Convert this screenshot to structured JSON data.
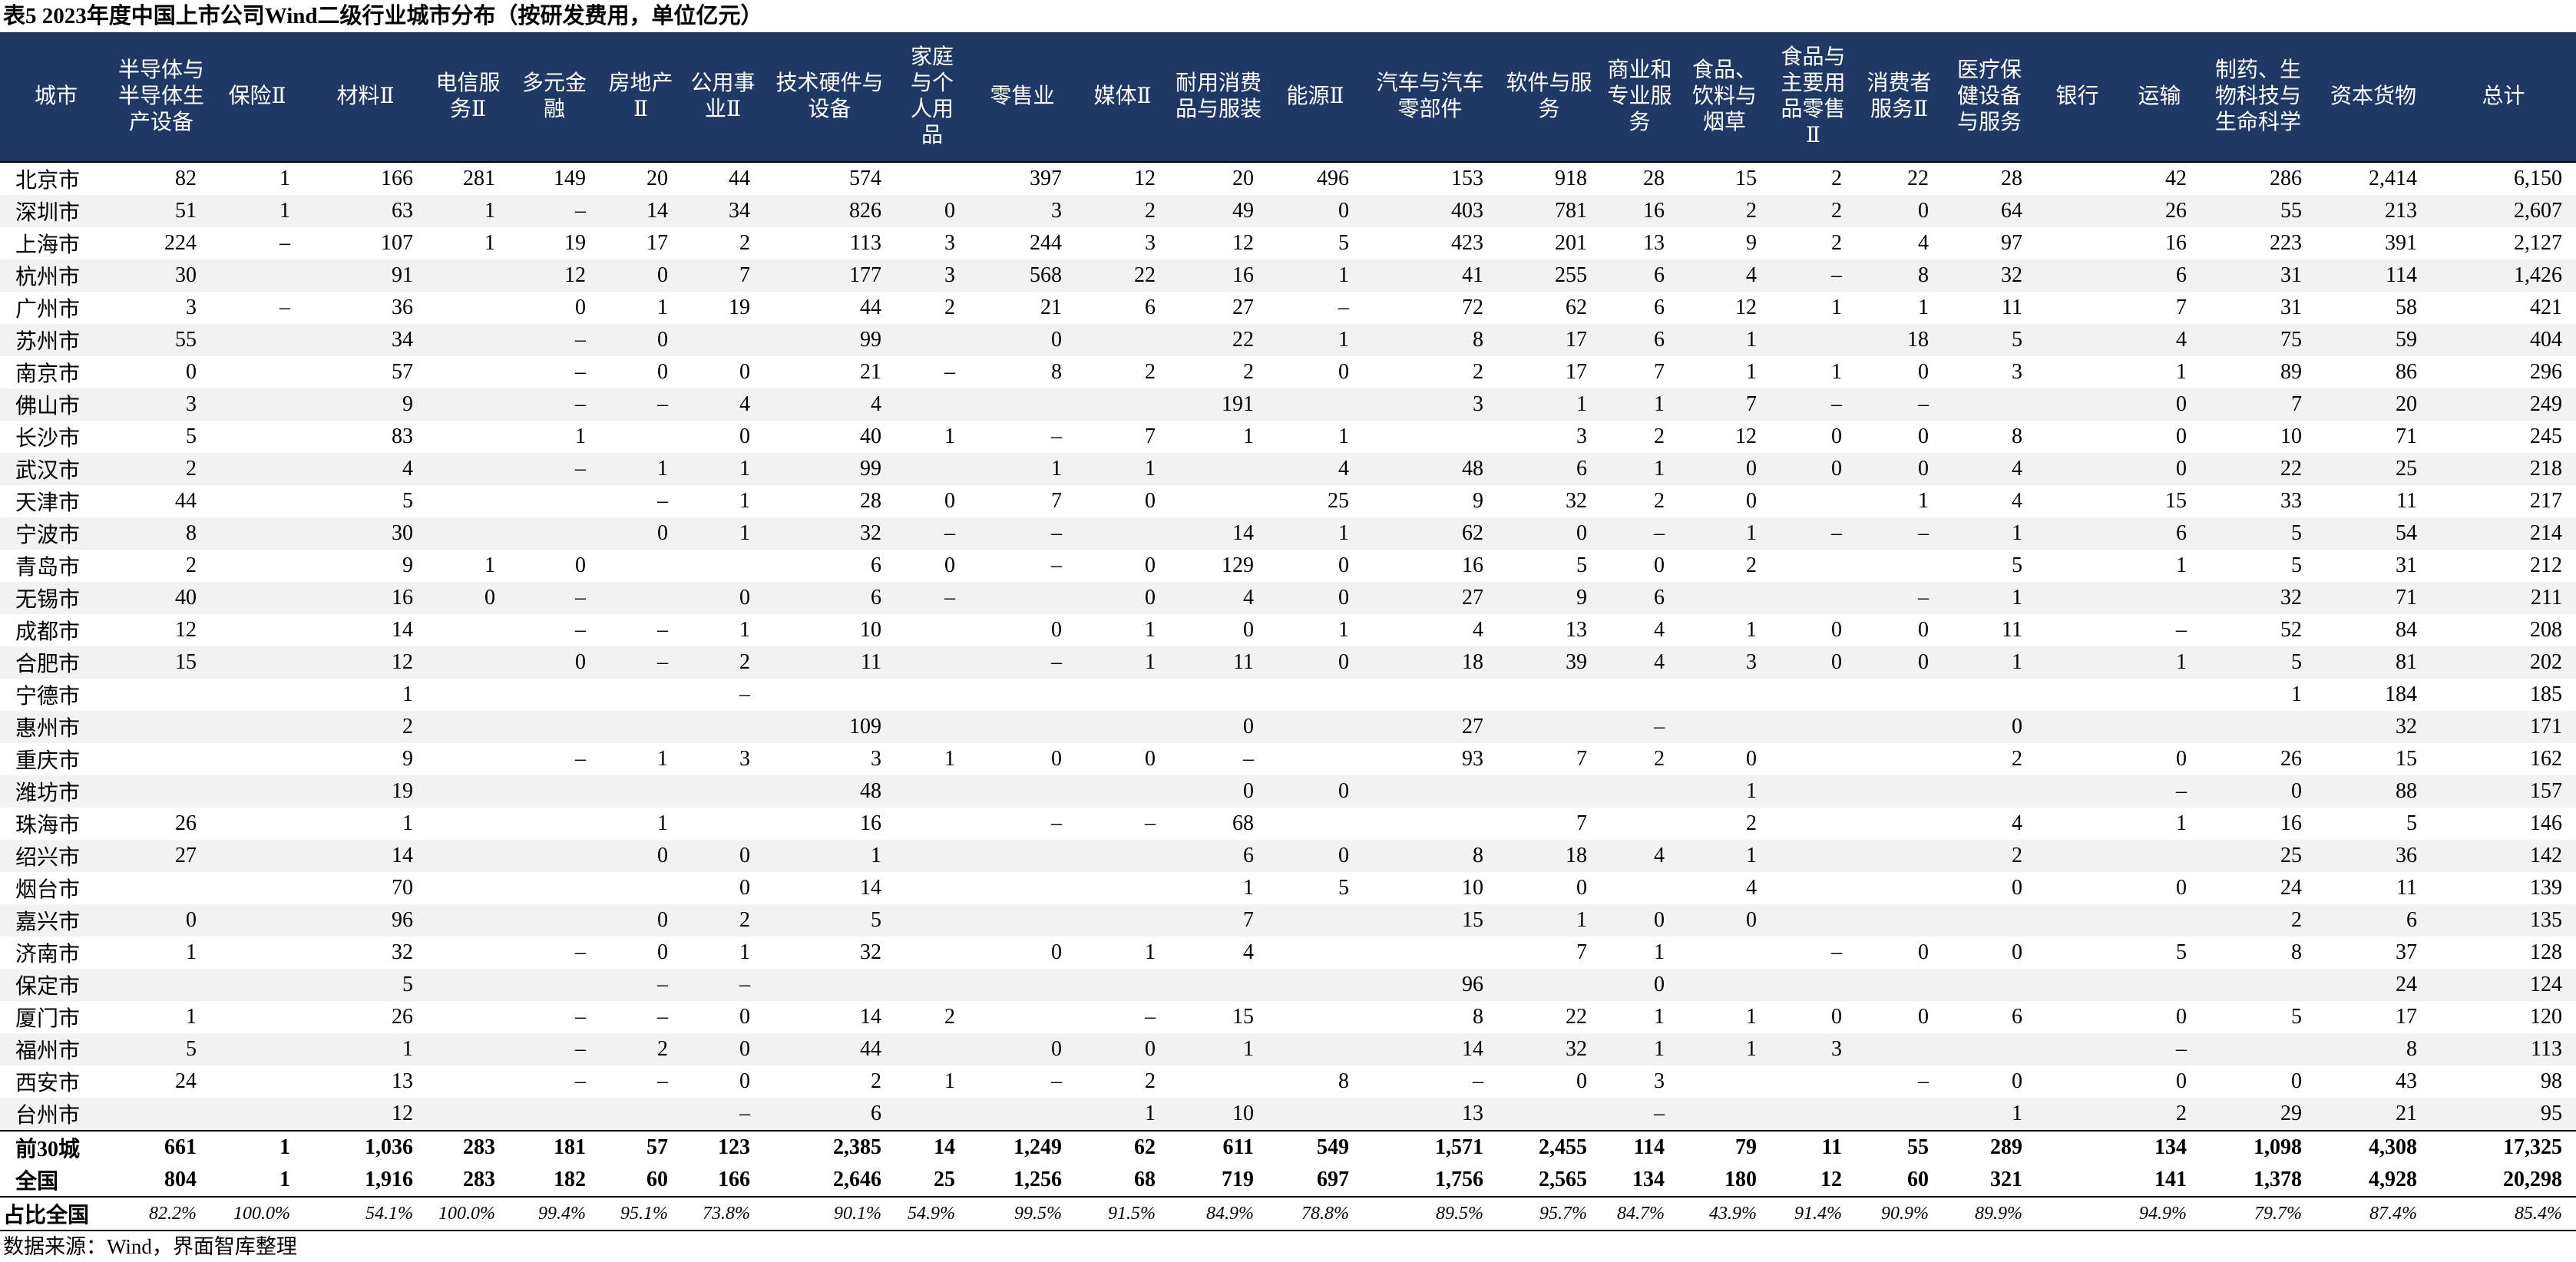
{
  "title": "表5 2023年度中国上市公司Wind二级行业城市分布（按研发费用，单位亿元）",
  "table": {
    "header": [
      "城市",
      "半导体与半导体生产设备",
      "保险Ⅱ",
      "材料Ⅱ",
      "电信服务Ⅱ",
      "多元金融",
      "房地产Ⅱ",
      "公用事业Ⅱ",
      "技术硬件与设备",
      "家庭与个人用品",
      "零售业",
      "媒体Ⅱ",
      "耐用消费品与服装",
      "能源Ⅱ",
      "汽车与汽车零部件",
      "软件与服务",
      "商业和专业服务",
      "食品、饮料与烟草",
      "食品与主要用品零售Ⅱ",
      "消费者服务Ⅱ",
      "医疗保健设备与服务",
      "银行",
      "运输",
      "制药、生物科技与生命科学",
      "资本货物",
      "总计"
    ],
    "rows": [
      [
        "北京市",
        "82",
        "1",
        "166",
        "281",
        "149",
        "20",
        "44",
        "574",
        null,
        "397",
        "12",
        "20",
        "496",
        "153",
        "918",
        "28",
        "15",
        "2",
        "22",
        "28",
        null,
        "42",
        "286",
        "2,414",
        "6,150"
      ],
      [
        "深圳市",
        "51",
        "1",
        "63",
        "1",
        "–",
        "14",
        "34",
        "826",
        "0",
        "3",
        "2",
        "49",
        "0",
        "403",
        "781",
        "16",
        "2",
        "2",
        "0",
        "64",
        null,
        "26",
        "55",
        "213",
        "2,607"
      ],
      [
        "上海市",
        "224",
        "–",
        "107",
        "1",
        "19",
        "17",
        "2",
        "113",
        "3",
        "244",
        "3",
        "12",
        "5",
        "423",
        "201",
        "13",
        "9",
        "2",
        "4",
        "97",
        null,
        "16",
        "223",
        "391",
        "2,127"
      ],
      [
        "杭州市",
        "30",
        null,
        "91",
        null,
        "12",
        "0",
        "7",
        "177",
        "3",
        "568",
        "22",
        "16",
        "1",
        "41",
        "255",
        "6",
        "4",
        "–",
        "8",
        "32",
        null,
        "6",
        "31",
        "114",
        "1,426"
      ],
      [
        "广州市",
        "3",
        "–",
        "36",
        null,
        "0",
        "1",
        "19",
        "44",
        "2",
        "21",
        "6",
        "27",
        "–",
        "72",
        "62",
        "6",
        "12",
        "1",
        "1",
        "11",
        null,
        "7",
        "31",
        "58",
        "421"
      ],
      [
        "苏州市",
        "55",
        null,
        "34",
        null,
        "–",
        "0",
        null,
        "99",
        null,
        "0",
        null,
        "22",
        "1",
        "8",
        "17",
        "6",
        "1",
        null,
        "18",
        "5",
        null,
        "4",
        "75",
        "59",
        "404"
      ],
      [
        "南京市",
        "0",
        null,
        "57",
        null,
        "–",
        "0",
        "0",
        "21",
        "–",
        "8",
        "2",
        "2",
        "0",
        "2",
        "17",
        "7",
        "1",
        "1",
        "0",
        "3",
        null,
        "1",
        "89",
        "86",
        "296"
      ],
      [
        "佛山市",
        "3",
        null,
        "9",
        null,
        "–",
        "–",
        "4",
        "4",
        null,
        null,
        null,
        "191",
        null,
        "3",
        "1",
        "1",
        "7",
        "–",
        "–",
        null,
        null,
        "0",
        "7",
        "20",
        "249"
      ],
      [
        "长沙市",
        "5",
        null,
        "83",
        null,
        "1",
        null,
        "0",
        "40",
        "1",
        "–",
        "7",
        "1",
        "1",
        null,
        "3",
        "2",
        "12",
        "0",
        "0",
        "8",
        null,
        "0",
        "10",
        "71",
        "245"
      ],
      [
        "武汉市",
        "2",
        null,
        "4",
        null,
        "–",
        "1",
        "1",
        "99",
        null,
        "1",
        "1",
        null,
        "4",
        "48",
        "6",
        "1",
        "0",
        "0",
        "0",
        "4",
        null,
        "0",
        "22",
        "25",
        "218"
      ],
      [
        "天津市",
        "44",
        null,
        "5",
        null,
        null,
        "–",
        "1",
        "28",
        "0",
        "7",
        "0",
        null,
        "25",
        "9",
        "32",
        "2",
        "0",
        null,
        "1",
        "4",
        null,
        "15",
        "33",
        "11",
        "217"
      ],
      [
        "宁波市",
        "8",
        null,
        "30",
        null,
        null,
        "0",
        "1",
        "32",
        "–",
        "–",
        null,
        "14",
        "1",
        "62",
        "0",
        "–",
        "1",
        "–",
        "–",
        "1",
        null,
        "6",
        "5",
        "54",
        "214"
      ],
      [
        "青岛市",
        "2",
        null,
        "9",
        "1",
        "0",
        null,
        null,
        "6",
        "0",
        "–",
        "0",
        "129",
        "0",
        "16",
        "5",
        "0",
        "2",
        null,
        null,
        "5",
        null,
        "1",
        "5",
        "31",
        "212"
      ],
      [
        "无锡市",
        "40",
        null,
        "16",
        "0",
        "–",
        null,
        "0",
        "6",
        "–",
        null,
        "0",
        "4",
        "0",
        "27",
        "9",
        "6",
        null,
        null,
        "–",
        "1",
        null,
        null,
        "32",
        "71",
        "211"
      ],
      [
        "成都市",
        "12",
        null,
        "14",
        null,
        "–",
        "–",
        "1",
        "10",
        null,
        "0",
        "1",
        "0",
        "1",
        "4",
        "13",
        "4",
        "1",
        "0",
        "0",
        "11",
        null,
        "–",
        "52",
        "84",
        "208"
      ],
      [
        "合肥市",
        "15",
        null,
        "12",
        null,
        "0",
        "–",
        "2",
        "11",
        null,
        "–",
        "1",
        "11",
        "0",
        "18",
        "39",
        "4",
        "3",
        "0",
        "0",
        "1",
        null,
        "1",
        "5",
        "81",
        "202"
      ],
      [
        "宁德市",
        null,
        null,
        "1",
        null,
        null,
        null,
        "–",
        null,
        null,
        null,
        null,
        null,
        null,
        null,
        null,
        null,
        null,
        null,
        null,
        null,
        null,
        null,
        "1",
        "184",
        "185"
      ],
      [
        "惠州市",
        null,
        null,
        "2",
        null,
        null,
        null,
        null,
        "109",
        null,
        null,
        null,
        "0",
        null,
        "27",
        null,
        "–",
        null,
        null,
        null,
        "0",
        null,
        null,
        null,
        "32",
        "171"
      ],
      [
        "重庆市",
        null,
        null,
        "9",
        null,
        "–",
        "1",
        "3",
        "3",
        "1",
        "0",
        "0",
        "–",
        null,
        "93",
        "7",
        "2",
        "0",
        null,
        null,
        "2",
        null,
        "0",
        "26",
        "15",
        "162"
      ],
      [
        "潍坊市",
        null,
        null,
        "19",
        null,
        null,
        null,
        null,
        "48",
        null,
        null,
        null,
        "0",
        "0",
        null,
        null,
        null,
        "1",
        null,
        null,
        null,
        null,
        "–",
        "0",
        "88",
        "157"
      ],
      [
        "珠海市",
        "26",
        null,
        "1",
        null,
        null,
        "1",
        null,
        "16",
        null,
        "–",
        "–",
        "68",
        null,
        null,
        "7",
        null,
        "2",
        null,
        null,
        "4",
        null,
        "1",
        "16",
        "5",
        "146"
      ],
      [
        "绍兴市",
        "27",
        null,
        "14",
        null,
        null,
        "0",
        "0",
        "1",
        null,
        null,
        null,
        "6",
        "0",
        "8",
        "18",
        "4",
        "1",
        null,
        null,
        "2",
        null,
        null,
        "25",
        "36",
        "142"
      ],
      [
        "烟台市",
        null,
        null,
        "70",
        null,
        null,
        null,
        "0",
        "14",
        null,
        null,
        null,
        "1",
        "5",
        "10",
        "0",
        null,
        "4",
        null,
        null,
        "0",
        null,
        "0",
        "24",
        "11",
        "139"
      ],
      [
        "嘉兴市",
        "0",
        null,
        "96",
        null,
        null,
        "0",
        "2",
        "5",
        null,
        null,
        null,
        "7",
        null,
        "15",
        "1",
        "0",
        "0",
        null,
        null,
        null,
        null,
        null,
        "2",
        "6",
        "135"
      ],
      [
        "济南市",
        "1",
        null,
        "32",
        null,
        "–",
        "0",
        "1",
        "32",
        null,
        "0",
        "1",
        "4",
        null,
        null,
        "7",
        "1",
        null,
        "–",
        "0",
        "0",
        null,
        "5",
        "8",
        "37",
        "128"
      ],
      [
        "保定市",
        null,
        null,
        "5",
        null,
        null,
        "–",
        "–",
        null,
        null,
        null,
        null,
        null,
        null,
        "96",
        null,
        "0",
        null,
        null,
        null,
        null,
        null,
        null,
        null,
        "24",
        "124"
      ],
      [
        "厦门市",
        "1",
        null,
        "26",
        null,
        "–",
        "–",
        "0",
        "14",
        "2",
        null,
        "–",
        "15",
        null,
        "8",
        "22",
        "1",
        "1",
        "0",
        "0",
        "6",
        null,
        "0",
        "5",
        "17",
        "120"
      ],
      [
        "福州市",
        "5",
        null,
        "1",
        null,
        "–",
        "2",
        "0",
        "44",
        null,
        "0",
        "0",
        "1",
        null,
        "14",
        "32",
        "1",
        "1",
        "3",
        null,
        null,
        null,
        "–",
        null,
        "8",
        "113"
      ],
      [
        "西安市",
        "24",
        null,
        "13",
        null,
        "–",
        "–",
        "0",
        "2",
        "1",
        "–",
        "2",
        null,
        "8",
        "–",
        "0",
        "3",
        null,
        null,
        "–",
        "0",
        null,
        "0",
        "0",
        "43",
        "98"
      ],
      [
        "台州市",
        null,
        null,
        "12",
        null,
        null,
        null,
        "–",
        "6",
        null,
        null,
        "1",
        "10",
        null,
        "13",
        null,
        "–",
        null,
        null,
        null,
        "1",
        null,
        "2",
        "29",
        "21",
        "95"
      ],
      [
        "前30城",
        "661",
        "1",
        "1,036",
        "283",
        "181",
        "57",
        "123",
        "2,385",
        "14",
        "1,249",
        "62",
        "611",
        "549",
        "1,571",
        "2,455",
        "114",
        "79",
        "11",
        "55",
        "289",
        null,
        "134",
        "1,098",
        "4,308",
        "17,325"
      ],
      [
        "全国",
        "804",
        "1",
        "1,916",
        "283",
        "182",
        "60",
        "166",
        "2,646",
        "25",
        "1,256",
        "68",
        "719",
        "697",
        "1,756",
        "2,565",
        "134",
        "180",
        "12",
        "60",
        "321",
        null,
        "141",
        "1,378",
        "4,928",
        "20,298"
      ],
      [
        "占比全国",
        "82.2%",
        "100.0%",
        "54.1%",
        "100.0%",
        "99.4%",
        "95.1%",
        "73.8%",
        "90.1%",
        "54.9%",
        "99.5%",
        "91.5%",
        "84.9%",
        "78.8%",
        "89.5%",
        "95.7%",
        "84.7%",
        "43.9%",
        "91.4%",
        "90.9%",
        "89.9%",
        null,
        "94.9%",
        "79.7%",
        "87.4%",
        "85.4%"
      ]
    ]
  },
  "source": "数据来源：Wind，界面智库整理"
}
